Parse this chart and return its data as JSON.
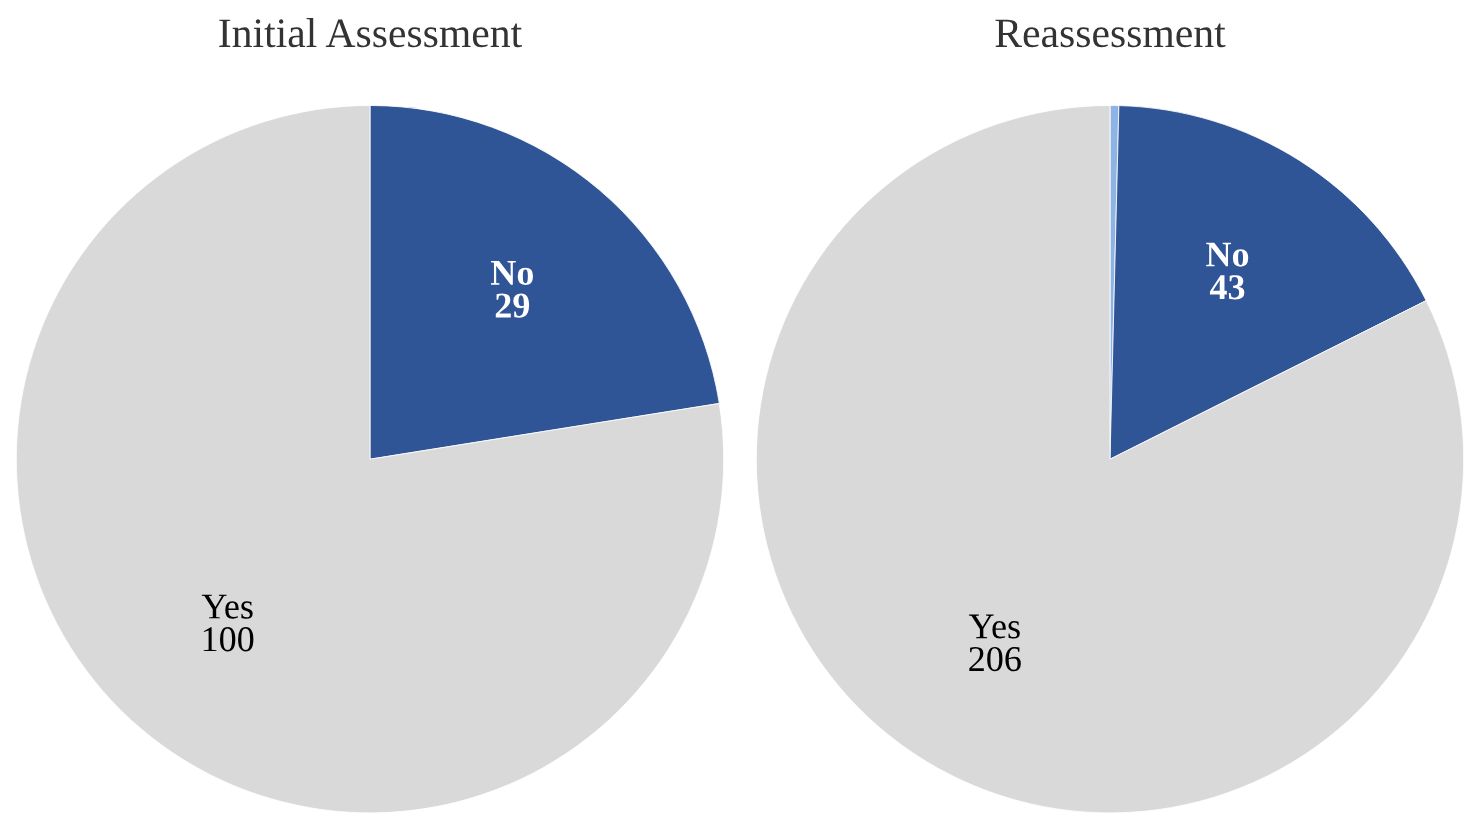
{
  "chart_data": [
    {
      "type": "pie",
      "title": "Initial Assessment",
      "categories": [
        "No",
        "Yes"
      ],
      "values": [
        29,
        100
      ],
      "colors": [
        "#2f5597",
        "#d9d9d9"
      ],
      "value_labels": [
        "29",
        "100"
      ]
    },
    {
      "type": "pie",
      "title": "Reassessment",
      "categories": [
        null,
        "No",
        "Yes"
      ],
      "values": [
        1,
        43,
        206
      ],
      "colors": [
        "#8eb4e3",
        "#2f5597",
        "#d9d9d9"
      ],
      "value_labels": [
        null,
        "43",
        "206"
      ]
    }
  ]
}
